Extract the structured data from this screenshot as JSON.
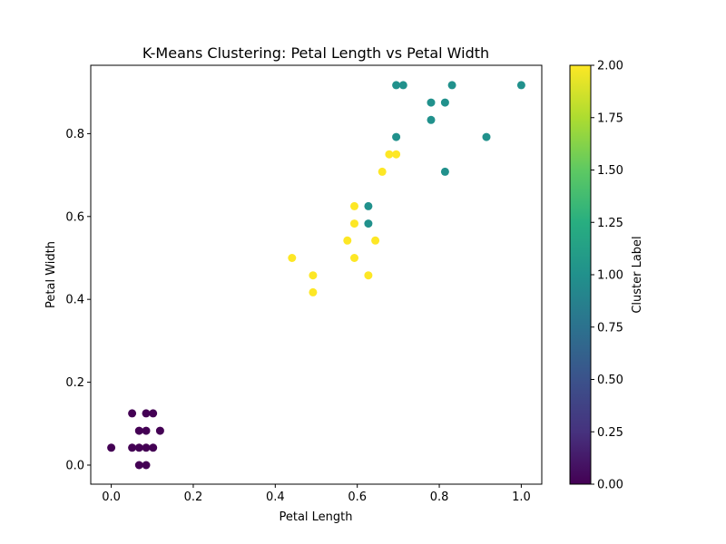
{
  "chart_data": {
    "type": "scatter",
    "title": "K-Means Clustering: Petal Length vs Petal Width",
    "xlabel": "Petal Length",
    "ylabel": "Petal Width",
    "xlim": [
      -0.05,
      1.05
    ],
    "ylim": [
      -0.046,
      0.965
    ],
    "xticks": [
      0.0,
      0.2,
      0.4,
      0.6,
      0.8,
      1.0
    ],
    "xtick_labels": [
      "0.0",
      "0.2",
      "0.4",
      "0.6",
      "0.8",
      "1.0"
    ],
    "yticks": [
      0.0,
      0.2,
      0.4,
      0.6,
      0.8
    ],
    "ytick_labels": [
      "0.0",
      "0.2",
      "0.4",
      "0.6",
      "0.8"
    ],
    "grid": false,
    "colorbar": {
      "label": "Cluster Label",
      "colormap": "viridis",
      "range": [
        0.0,
        2.0
      ],
      "ticks": [
        0.0,
        0.25,
        0.5,
        0.75,
        1.0,
        1.25,
        1.5,
        1.75,
        2.0
      ],
      "tick_labels": [
        "0.00",
        "0.25",
        "0.50",
        "0.75",
        "1.00",
        "1.25",
        "1.50",
        "1.75",
        "2.00"
      ]
    },
    "cluster_colors": {
      "0": "#440154",
      "1": "#21918c",
      "2": "#fde725"
    },
    "points": [
      {
        "x": 0.0,
        "y": 0.042,
        "cluster": 0
      },
      {
        "x": 0.051,
        "y": 0.125,
        "cluster": 0
      },
      {
        "x": 0.085,
        "y": 0.125,
        "cluster": 0
      },
      {
        "x": 0.102,
        "y": 0.125,
        "cluster": 0
      },
      {
        "x": 0.068,
        "y": 0.083,
        "cluster": 0
      },
      {
        "x": 0.085,
        "y": 0.083,
        "cluster": 0
      },
      {
        "x": 0.119,
        "y": 0.083,
        "cluster": 0
      },
      {
        "x": 0.051,
        "y": 0.042,
        "cluster": 0
      },
      {
        "x": 0.068,
        "y": 0.042,
        "cluster": 0
      },
      {
        "x": 0.085,
        "y": 0.042,
        "cluster": 0
      },
      {
        "x": 0.102,
        "y": 0.042,
        "cluster": 0
      },
      {
        "x": 0.068,
        "y": 0.0,
        "cluster": 0
      },
      {
        "x": 0.085,
        "y": 0.0,
        "cluster": 0
      },
      {
        "x": 0.441,
        "y": 0.5,
        "cluster": 2
      },
      {
        "x": 0.492,
        "y": 0.458,
        "cluster": 2
      },
      {
        "x": 0.492,
        "y": 0.417,
        "cluster": 2
      },
      {
        "x": 0.576,
        "y": 0.542,
        "cluster": 2
      },
      {
        "x": 0.593,
        "y": 0.625,
        "cluster": 2
      },
      {
        "x": 0.593,
        "y": 0.583,
        "cluster": 2
      },
      {
        "x": 0.593,
        "y": 0.5,
        "cluster": 2
      },
      {
        "x": 0.627,
        "y": 0.458,
        "cluster": 2
      },
      {
        "x": 0.644,
        "y": 0.542,
        "cluster": 2
      },
      {
        "x": 0.661,
        "y": 0.708,
        "cluster": 2
      },
      {
        "x": 0.678,
        "y": 0.75,
        "cluster": 2
      },
      {
        "x": 0.695,
        "y": 0.75,
        "cluster": 2
      },
      {
        "x": 0.627,
        "y": 0.625,
        "cluster": 1
      },
      {
        "x": 0.627,
        "y": 0.583,
        "cluster": 1
      },
      {
        "x": 0.695,
        "y": 0.917,
        "cluster": 1
      },
      {
        "x": 0.712,
        "y": 0.917,
        "cluster": 1
      },
      {
        "x": 0.695,
        "y": 0.792,
        "cluster": 1
      },
      {
        "x": 0.78,
        "y": 0.875,
        "cluster": 1
      },
      {
        "x": 0.78,
        "y": 0.833,
        "cluster": 1
      },
      {
        "x": 0.814,
        "y": 0.875,
        "cluster": 1
      },
      {
        "x": 0.814,
        "y": 0.708,
        "cluster": 1
      },
      {
        "x": 0.831,
        "y": 0.917,
        "cluster": 1
      },
      {
        "x": 0.915,
        "y": 0.792,
        "cluster": 1
      },
      {
        "x": 1.0,
        "y": 0.917,
        "cluster": 1
      }
    ]
  }
}
